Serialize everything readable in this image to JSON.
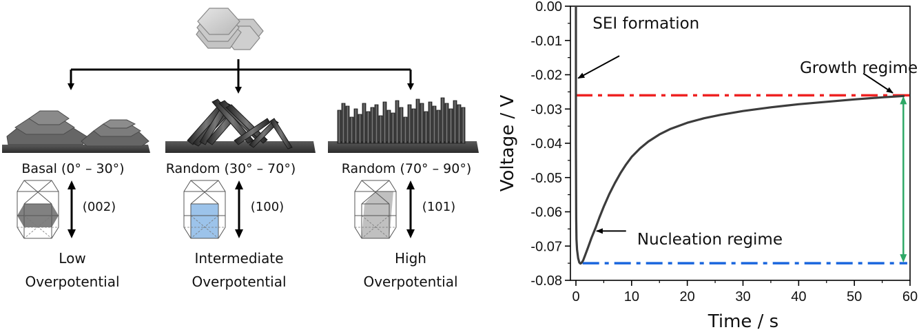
{
  "schematic": {
    "branches": [
      {
        "orientation": "Basal (0° – 30°)",
        "plane": "(002)",
        "overpotential_line1": "Low",
        "overpotential_line2": "Overpotential",
        "plane_color": "#7a7a7a",
        "morphology": "stacked hexagonal platelets"
      },
      {
        "orientation": "Random (30° – 70°)",
        "plane": "(100)",
        "overpotential_line1": "Intermediate",
        "overpotential_line2": "Overpotential",
        "plane_color": "#9cc3ea",
        "morphology": "tilted rods"
      },
      {
        "orientation": "Random (70° – 90°)",
        "plane": "(101)",
        "overpotential_line1": "High",
        "overpotential_line2": "Overpotential",
        "plane_color": "#bdbdbd",
        "morphology": "vertical rods"
      }
    ]
  },
  "chart_data": {
    "type": "line",
    "title": "",
    "xlabel": "Time / s",
    "ylabel": "Voltage / V",
    "xlim": [
      -1,
      60
    ],
    "ylim": [
      -0.08,
      0.0
    ],
    "xticks": [
      0,
      10,
      20,
      30,
      40,
      50,
      60
    ],
    "xtick_labels": [
      "0",
      "10",
      "20",
      "30",
      "40",
      "50",
      "60"
    ],
    "yticks": [
      0.0,
      -0.01,
      -0.02,
      -0.03,
      -0.04,
      -0.05,
      -0.06,
      -0.07,
      -0.08
    ],
    "ytick_labels": [
      "0.00",
      "-0.01",
      "-0.02",
      "-0.03",
      "-0.04",
      "-0.05",
      "-0.06",
      "-0.07",
      "-0.08"
    ],
    "grid": false,
    "series": [
      {
        "name": "voltage",
        "color": "#3c3c3c",
        "x": [
          0.0,
          0.0,
          0.05,
          0.1,
          0.2,
          0.4,
          0.6,
          0.8,
          1.0,
          1.3,
          1.7,
          2.2,
          2.8,
          3.5,
          4.2,
          5.0,
          6.0,
          7.0,
          8.0,
          9.0,
          10.0,
          11.5,
          13.0,
          15.0,
          17.0,
          20.0,
          23.0,
          26.0,
          30.0,
          35.0,
          40.0,
          45.0,
          50.0,
          55.0,
          59.0
        ],
        "y": [
          0.0,
          -0.04,
          -0.062,
          -0.068,
          -0.071,
          -0.0735,
          -0.0748,
          -0.0751,
          -0.0749,
          -0.0742,
          -0.0725,
          -0.0703,
          -0.0676,
          -0.0648,
          -0.0617,
          -0.0585,
          -0.0548,
          -0.0516,
          -0.0487,
          -0.0462,
          -0.044,
          -0.0415,
          -0.0395,
          -0.0374,
          -0.0358,
          -0.034,
          -0.0327,
          -0.0317,
          -0.0306,
          -0.0295,
          -0.0286,
          -0.0279,
          -0.0272,
          -0.0266,
          -0.0262
        ]
      }
    ],
    "reference_lines": [
      {
        "name": "growth-level",
        "y": -0.026,
        "color": "#ee2222",
        "style": "dash-dot",
        "x_range": [
          0.0,
          60.0
        ]
      },
      {
        "name": "nucleation-level",
        "y": -0.075,
        "color": "#1a66dd",
        "style": "dash-dot",
        "x_range": [
          1.2,
          59.5
        ]
      }
    ],
    "double_arrow": {
      "x": 58.8,
      "y_from": -0.026,
      "y_to": -0.075,
      "color": "#2ea866"
    },
    "annotations": [
      {
        "text": "SEI formation",
        "text_x": 3.0,
        "text_y": -0.0065,
        "arrow_from": [
          7.8,
          -0.0145
        ],
        "arrow_to": [
          0.4,
          -0.021
        ]
      },
      {
        "text": "Growth regime",
        "text_x": 40.2,
        "text_y": -0.0195,
        "arrow_from": [
          51.6,
          -0.0196
        ],
        "arrow_to": [
          56.9,
          -0.0253
        ]
      },
      {
        "text": "Nucleation regime",
        "text_x": 11.0,
        "text_y": -0.0695,
        "arrow_from": [
          9.0,
          -0.0656
        ],
        "arrow_to": [
          3.7,
          -0.0656
        ]
      }
    ]
  }
}
